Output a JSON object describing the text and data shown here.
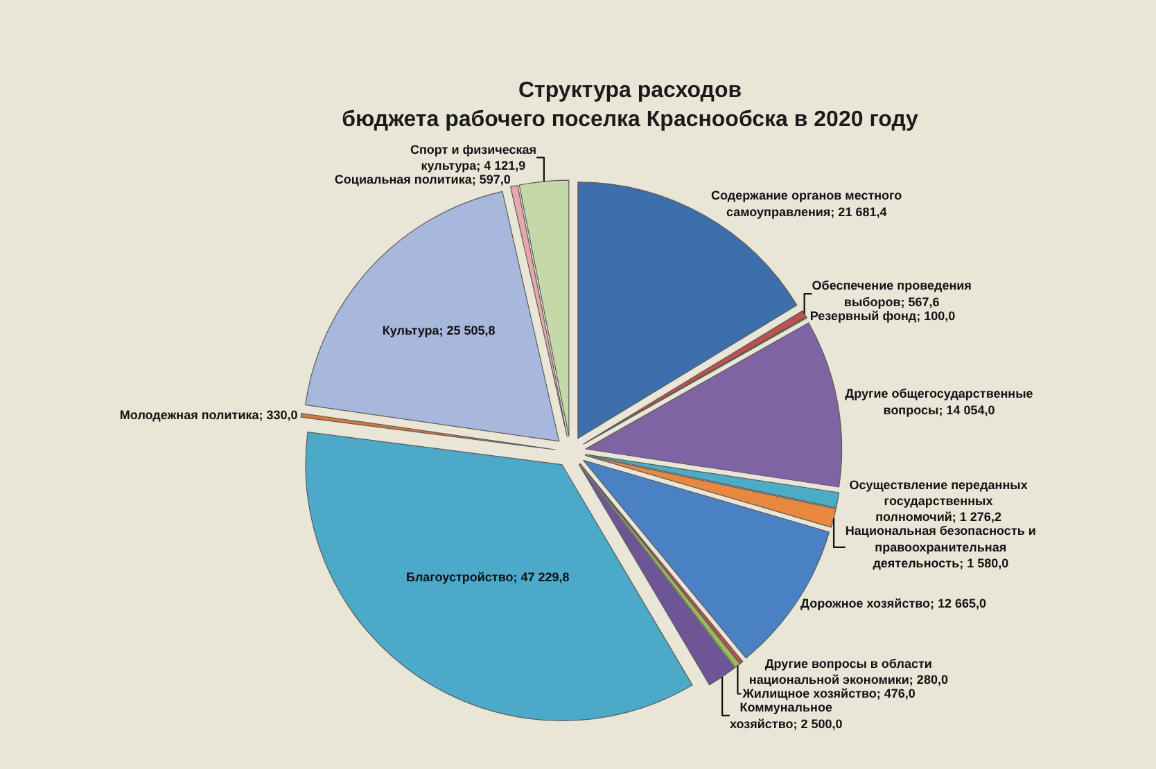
{
  "chart_data": {
    "type": "pie",
    "title": "Структура расходов\nбюджета рабочего поселка Краснообска в 2020 году",
    "categories": [
      "Содержание органов местного самоуправления",
      "Обеспечение проведения выборов",
      "Резервный фонд",
      "Другие общегосударственные вопросы",
      "Осуществление переданных государственных полномочий",
      "Национальная безопасность и правоохранительная деятельность",
      "Дорожное хозяйство",
      "Другие вопросы в области национальной экономики",
      "Жилищное хозяйство",
      "Коммунальное хозяйство",
      "Благоустройство",
      "Молодежная политика",
      "Культура",
      "Социальная политика",
      "Спорт и физическая культура"
    ],
    "values": [
      21681.4,
      567.6,
      100.0,
      14054.0,
      1276.2,
      1580.0,
      12665.0,
      280.0,
      476.0,
      2500.0,
      47229.8,
      330.0,
      25505.8,
      597.0,
      4121.9
    ],
    "value_labels": [
      "21 681,4",
      "567,6",
      "100,0",
      "14 054,0",
      "1 276,2",
      "1 580,0",
      "12 665,0",
      "280,0",
      "476,0",
      "2 500,0",
      "47 229,8",
      "330,0",
      "25 505,8",
      "597,0",
      "4 121,9"
    ],
    "colors": [
      "#3d6fad",
      "#c0504d",
      "#7a9a3c",
      "#7f63a3",
      "#4bacc6",
      "#e8883e",
      "#4a80c4",
      "#c0504d",
      "#9bbb59",
      "#6e5596",
      "#4aaac8",
      "#d9763a",
      "#a8b8dc",
      "#e6a8a8",
      "#c4d8a8"
    ]
  }
}
